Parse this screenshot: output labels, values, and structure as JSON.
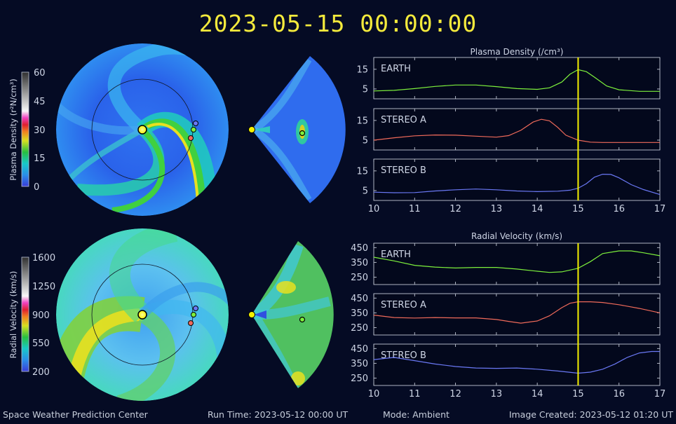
{
  "title": "2023-05-15 00:00:00",
  "footer": {
    "center": "Space Weather Prediction Center",
    "run_time": "Run Time: 2023-05-12 00:00 UT",
    "mode": "Mode: Ambient",
    "image_created": "Image Created: 2023-05-12 01:20 UT"
  },
  "colors": {
    "background": "#050b24",
    "title": "#f4ea3c",
    "earth": "#7df03c",
    "stereo_a": "#f06a5a",
    "stereo_b": "#6a78f4",
    "cursor": "#f4f000",
    "sun": "#f4f000"
  },
  "colorbars": [
    {
      "label": "Plasma Density (r²N/cm³)",
      "ticks": [
        "60",
        "45",
        "30",
        "15",
        "0"
      ]
    },
    {
      "label": "Radial Velocity (km/s)",
      "ticks": [
        "1600",
        "1250",
        "900",
        "550",
        "200"
      ]
    }
  ],
  "chart_data": [
    {
      "type": "line",
      "title": "Plasma Density (/cm³)",
      "xlabel": "",
      "ylabel": "",
      "xlim": [
        10,
        17
      ],
      "x_ticks": [
        "10",
        "11",
        "12",
        "13",
        "14",
        "15",
        "16",
        "17"
      ],
      "cursor_x": 15,
      "series": [
        {
          "name": "EARTH",
          "ylim": [
            0,
            21
          ],
          "y_ticks": [
            "15",
            "5"
          ],
          "x": [
            10,
            10.5,
            11,
            11.5,
            12,
            12.5,
            13,
            13.5,
            14,
            14.3,
            14.6,
            14.8,
            15,
            15.2,
            15.4,
            15.7,
            16,
            16.5,
            17
          ],
          "values": [
            4,
            4.3,
            5.2,
            6.3,
            7,
            7,
            6.2,
            5.2,
            4.8,
            5.6,
            8.5,
            12.5,
            14.8,
            13.8,
            11,
            6.5,
            4.6,
            3.8,
            3.8
          ]
        },
        {
          "name": "STEREO A",
          "ylim": [
            0,
            21
          ],
          "y_ticks": [
            "15",
            "5"
          ],
          "x": [
            10,
            10.5,
            11,
            11.5,
            12,
            12.5,
            13,
            13.3,
            13.6,
            13.9,
            14.1,
            14.3,
            14.5,
            14.7,
            15,
            15.3,
            15.6,
            16,
            16.5,
            17
          ],
          "values": [
            5,
            6.2,
            7.2,
            7.6,
            7.5,
            7,
            6.5,
            7.3,
            10,
            14.2,
            15.6,
            14.8,
            11.5,
            7.5,
            5,
            4,
            3.8,
            3.8,
            3.8,
            3.8
          ]
        },
        {
          "name": "STEREO B",
          "ylim": [
            0,
            21
          ],
          "y_ticks": [
            "15",
            "5"
          ],
          "x": [
            10,
            10.5,
            11,
            11.5,
            12,
            12.5,
            13,
            13.5,
            14,
            14.5,
            14.8,
            15,
            15.2,
            15.4,
            15.6,
            15.8,
            16,
            16.3,
            16.6,
            17
          ],
          "values": [
            4.2,
            3.9,
            4,
            4.8,
            5.4,
            5.8,
            5.4,
            4.8,
            4.5,
            4.7,
            5.2,
            6.2,
            8.5,
            11.8,
            13.3,
            13.2,
            11.5,
            8,
            5.5,
            3
          ]
        }
      ]
    },
    {
      "type": "line",
      "title": "Radial Velocity (km/s)",
      "xlabel": "",
      "ylabel": "",
      "xlim": [
        10,
        17
      ],
      "x_ticks": [
        "10",
        "11",
        "12",
        "13",
        "14",
        "15",
        "16",
        "17"
      ],
      "cursor_x": 15,
      "series": [
        {
          "name": "EARTH",
          "ylim": [
            200,
            480
          ],
          "y_ticks": [
            "450",
            "350",
            "250"
          ],
          "x": [
            10,
            10.5,
            11,
            11.5,
            12,
            12.5,
            13,
            13.5,
            14,
            14.3,
            14.6,
            15,
            15.3,
            15.6,
            16,
            16.3,
            16.6,
            17
          ],
          "values": [
            385,
            360,
            330,
            318,
            312,
            316,
            316,
            305,
            290,
            282,
            286,
            310,
            355,
            410,
            428,
            428,
            415,
            395
          ]
        },
        {
          "name": "STEREO A",
          "ylim": [
            200,
            480
          ],
          "y_ticks": [
            "450",
            "350",
            "250"
          ],
          "x": [
            10,
            10.5,
            11,
            11.5,
            12,
            12.5,
            13,
            13.3,
            13.6,
            14,
            14.3,
            14.6,
            14.8,
            15,
            15.3,
            15.6,
            16,
            16.5,
            17
          ],
          "values": [
            335,
            318,
            315,
            318,
            316,
            316,
            305,
            292,
            280,
            295,
            330,
            385,
            415,
            425,
            425,
            420,
            405,
            380,
            350
          ]
        },
        {
          "name": "STEREO B",
          "ylim": [
            200,
            480
          ],
          "y_ticks": [
            "450",
            "350",
            "250"
          ],
          "x": [
            10,
            10.5,
            11,
            11.5,
            12,
            12.5,
            13,
            13.5,
            14,
            14.5,
            15,
            15.3,
            15.6,
            15.9,
            16.2,
            16.5,
            16.8,
            17
          ],
          "values": [
            375,
            390,
            368,
            345,
            328,
            318,
            316,
            318,
            310,
            298,
            283,
            290,
            310,
            345,
            390,
            420,
            430,
            430
          ]
        }
      ]
    }
  ]
}
